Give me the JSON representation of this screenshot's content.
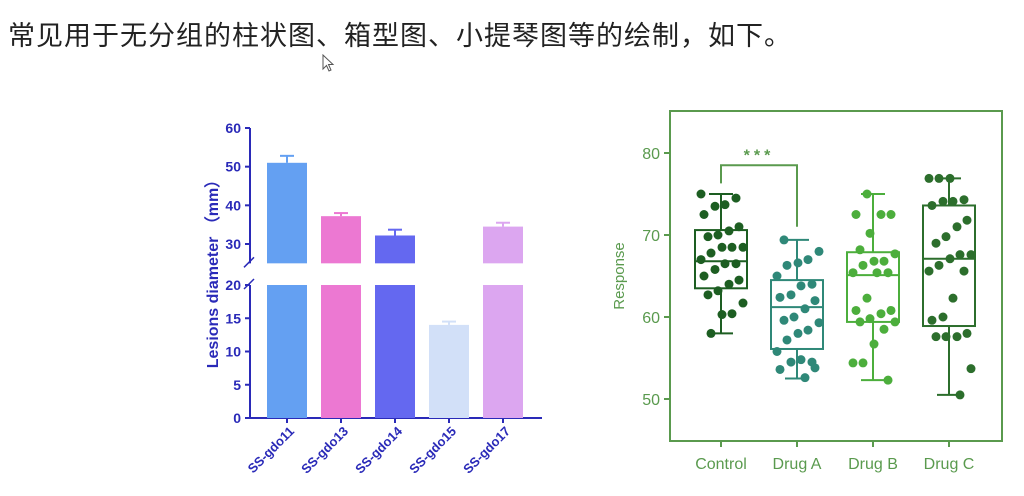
{
  "caption": "常见用于无分组的柱状图、箱型图、小提琴图等的绘制，如下。",
  "chart_data": [
    {
      "type": "bar",
      "title": "",
      "xlabel": "",
      "ylabel": "Lesions diameter （mm）",
      "axis_break": [
        20,
        25
      ],
      "ylim": [
        0,
        60
      ],
      "yticks_lower": [
        0,
        5,
        10,
        15,
        20
      ],
      "yticks_upper": [
        30,
        40,
        50,
        60
      ],
      "categories": [
        "SS-gdo11",
        "SS-gdo13",
        "SS-gdo14",
        "SS-gdo15",
        "SS-gdo17"
      ],
      "values": [
        51,
        37.2,
        32.2,
        14,
        34.5
      ],
      "error": [
        1.8,
        0.8,
        1.5,
        0.5,
        1.0
      ],
      "colors": [
        "#64a0f2",
        "#ec78d2",
        "#6468f0",
        "#d2e0f8",
        "#dca6f0"
      ],
      "axis_color": "#2a2ab8"
    },
    {
      "type": "box",
      "ylabel": "Response",
      "xlabel": "",
      "ylim": [
        45,
        85
      ],
      "yticks": [
        50,
        60,
        70,
        80
      ],
      "categories": [
        "Control",
        "Drug A",
        "Drug B",
        "Drug C"
      ],
      "colors": [
        "#1d5e22",
        "#2f8878",
        "#4cae3c",
        "#2c6e2c"
      ],
      "axis_color": "#5a9a4e",
      "boxes": [
        {
          "min": 58,
          "q1": 63.5,
          "median": 66.8,
          "q3": 70.6,
          "max": 75
        },
        {
          "min": 52.5,
          "q1": 56.1,
          "median": 61.2,
          "q3": 64.5,
          "max": 69.4
        },
        {
          "min": 52.3,
          "q1": 59.4,
          "median": 65.1,
          "q3": 67.9,
          "max": 75
        },
        {
          "min": 50.5,
          "q1": 58.9,
          "median": 67.1,
          "q3": 73.6,
          "max": 76.9
        }
      ],
      "points": [
        [
          75,
          74.5,
          73.7,
          73.5,
          72.5,
          71,
          70.5,
          70,
          69.8,
          68.5,
          68.5,
          68.5,
          67.8,
          67,
          66.5,
          66.5,
          65.8,
          65,
          64.5,
          64,
          63.2,
          62.7,
          61.7,
          60.4,
          60.3,
          58
        ],
        [
          69.4,
          68,
          67,
          66.6,
          66.3,
          65,
          64,
          63.8,
          62.7,
          62.4,
          62,
          61,
          60,
          59.6,
          59.3,
          58.4,
          58,
          57.2,
          55.8,
          54.5,
          54.8,
          54.5,
          53.6,
          53.8,
          52.6
        ],
        [
          75,
          72.5,
          72.5,
          72.5,
          70.2,
          68.2,
          67.7,
          66.8,
          66.8,
          66.3,
          65.4,
          65.4,
          65.4,
          62.3,
          60.8,
          60.8,
          60.4,
          59.8,
          59.4,
          59.4,
          58.5,
          56.7,
          54.4,
          54.4,
          52.3
        ],
        [
          76.9,
          76.9,
          76.9,
          74.3,
          74.1,
          74.1,
          73.6,
          71.8,
          71,
          69.8,
          69,
          67.6,
          67.6,
          67.1,
          66.3,
          65.6,
          65.6,
          62.3,
          60,
          59.6,
          58,
          57.6,
          57.6,
          57.6,
          53.7,
          50.5
        ]
      ],
      "significance": {
        "from": "Control",
        "to": "Drug A",
        "label": "***"
      }
    }
  ]
}
